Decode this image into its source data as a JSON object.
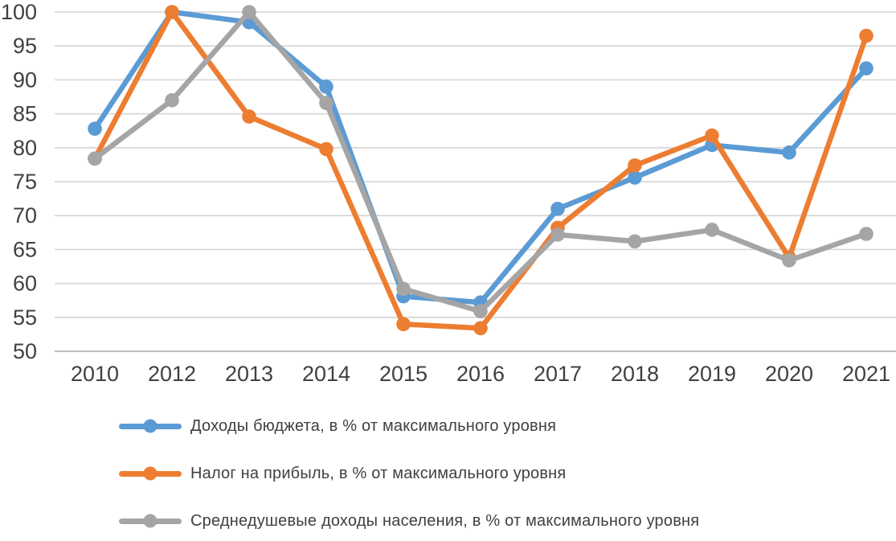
{
  "chart_data": {
    "type": "line",
    "title": "",
    "xlabel": "",
    "ylabel": "",
    "categories": [
      "2010",
      "2012",
      "2013",
      "2014",
      "2015",
      "2016",
      "2017",
      "2018",
      "2019",
      "2020",
      "2021"
    ],
    "series": [
      {
        "name": "Доходы бюджета, в % от максимального уровня",
        "color": "#5B9BD5",
        "values": [
          82.8,
          100,
          98.5,
          89.0,
          58.1,
          57.2,
          71.0,
          75.6,
          80.4,
          79.3,
          91.7
        ]
      },
      {
        "name": "Налог на прибыль, в % от максимального уровня",
        "color": "#ED7D31",
        "values": [
          78.4,
          100,
          84.6,
          79.8,
          54.0,
          53.4,
          68.2,
          77.4,
          81.8,
          63.8,
          96.5
        ]
      },
      {
        "name": "Среднедушевые доходы населения, в % от максимального уровня",
        "color": "#A5A5A5",
        "values": [
          78.4,
          87.0,
          100,
          86.6,
          59.2,
          55.9,
          67.2,
          66.2,
          67.9,
          63.4,
          67.3
        ]
      }
    ],
    "ylim": [
      50,
      100
    ],
    "yticks": [
      50,
      55,
      60,
      65,
      70,
      75,
      80,
      85,
      90,
      95,
      100
    ],
    "grid": "horizontal",
    "legend_position": "bottom-left",
    "colors": {
      "gridline": "#D9D9D9",
      "axis_line": "#BFBFBF",
      "tick_text": "#404040"
    }
  }
}
